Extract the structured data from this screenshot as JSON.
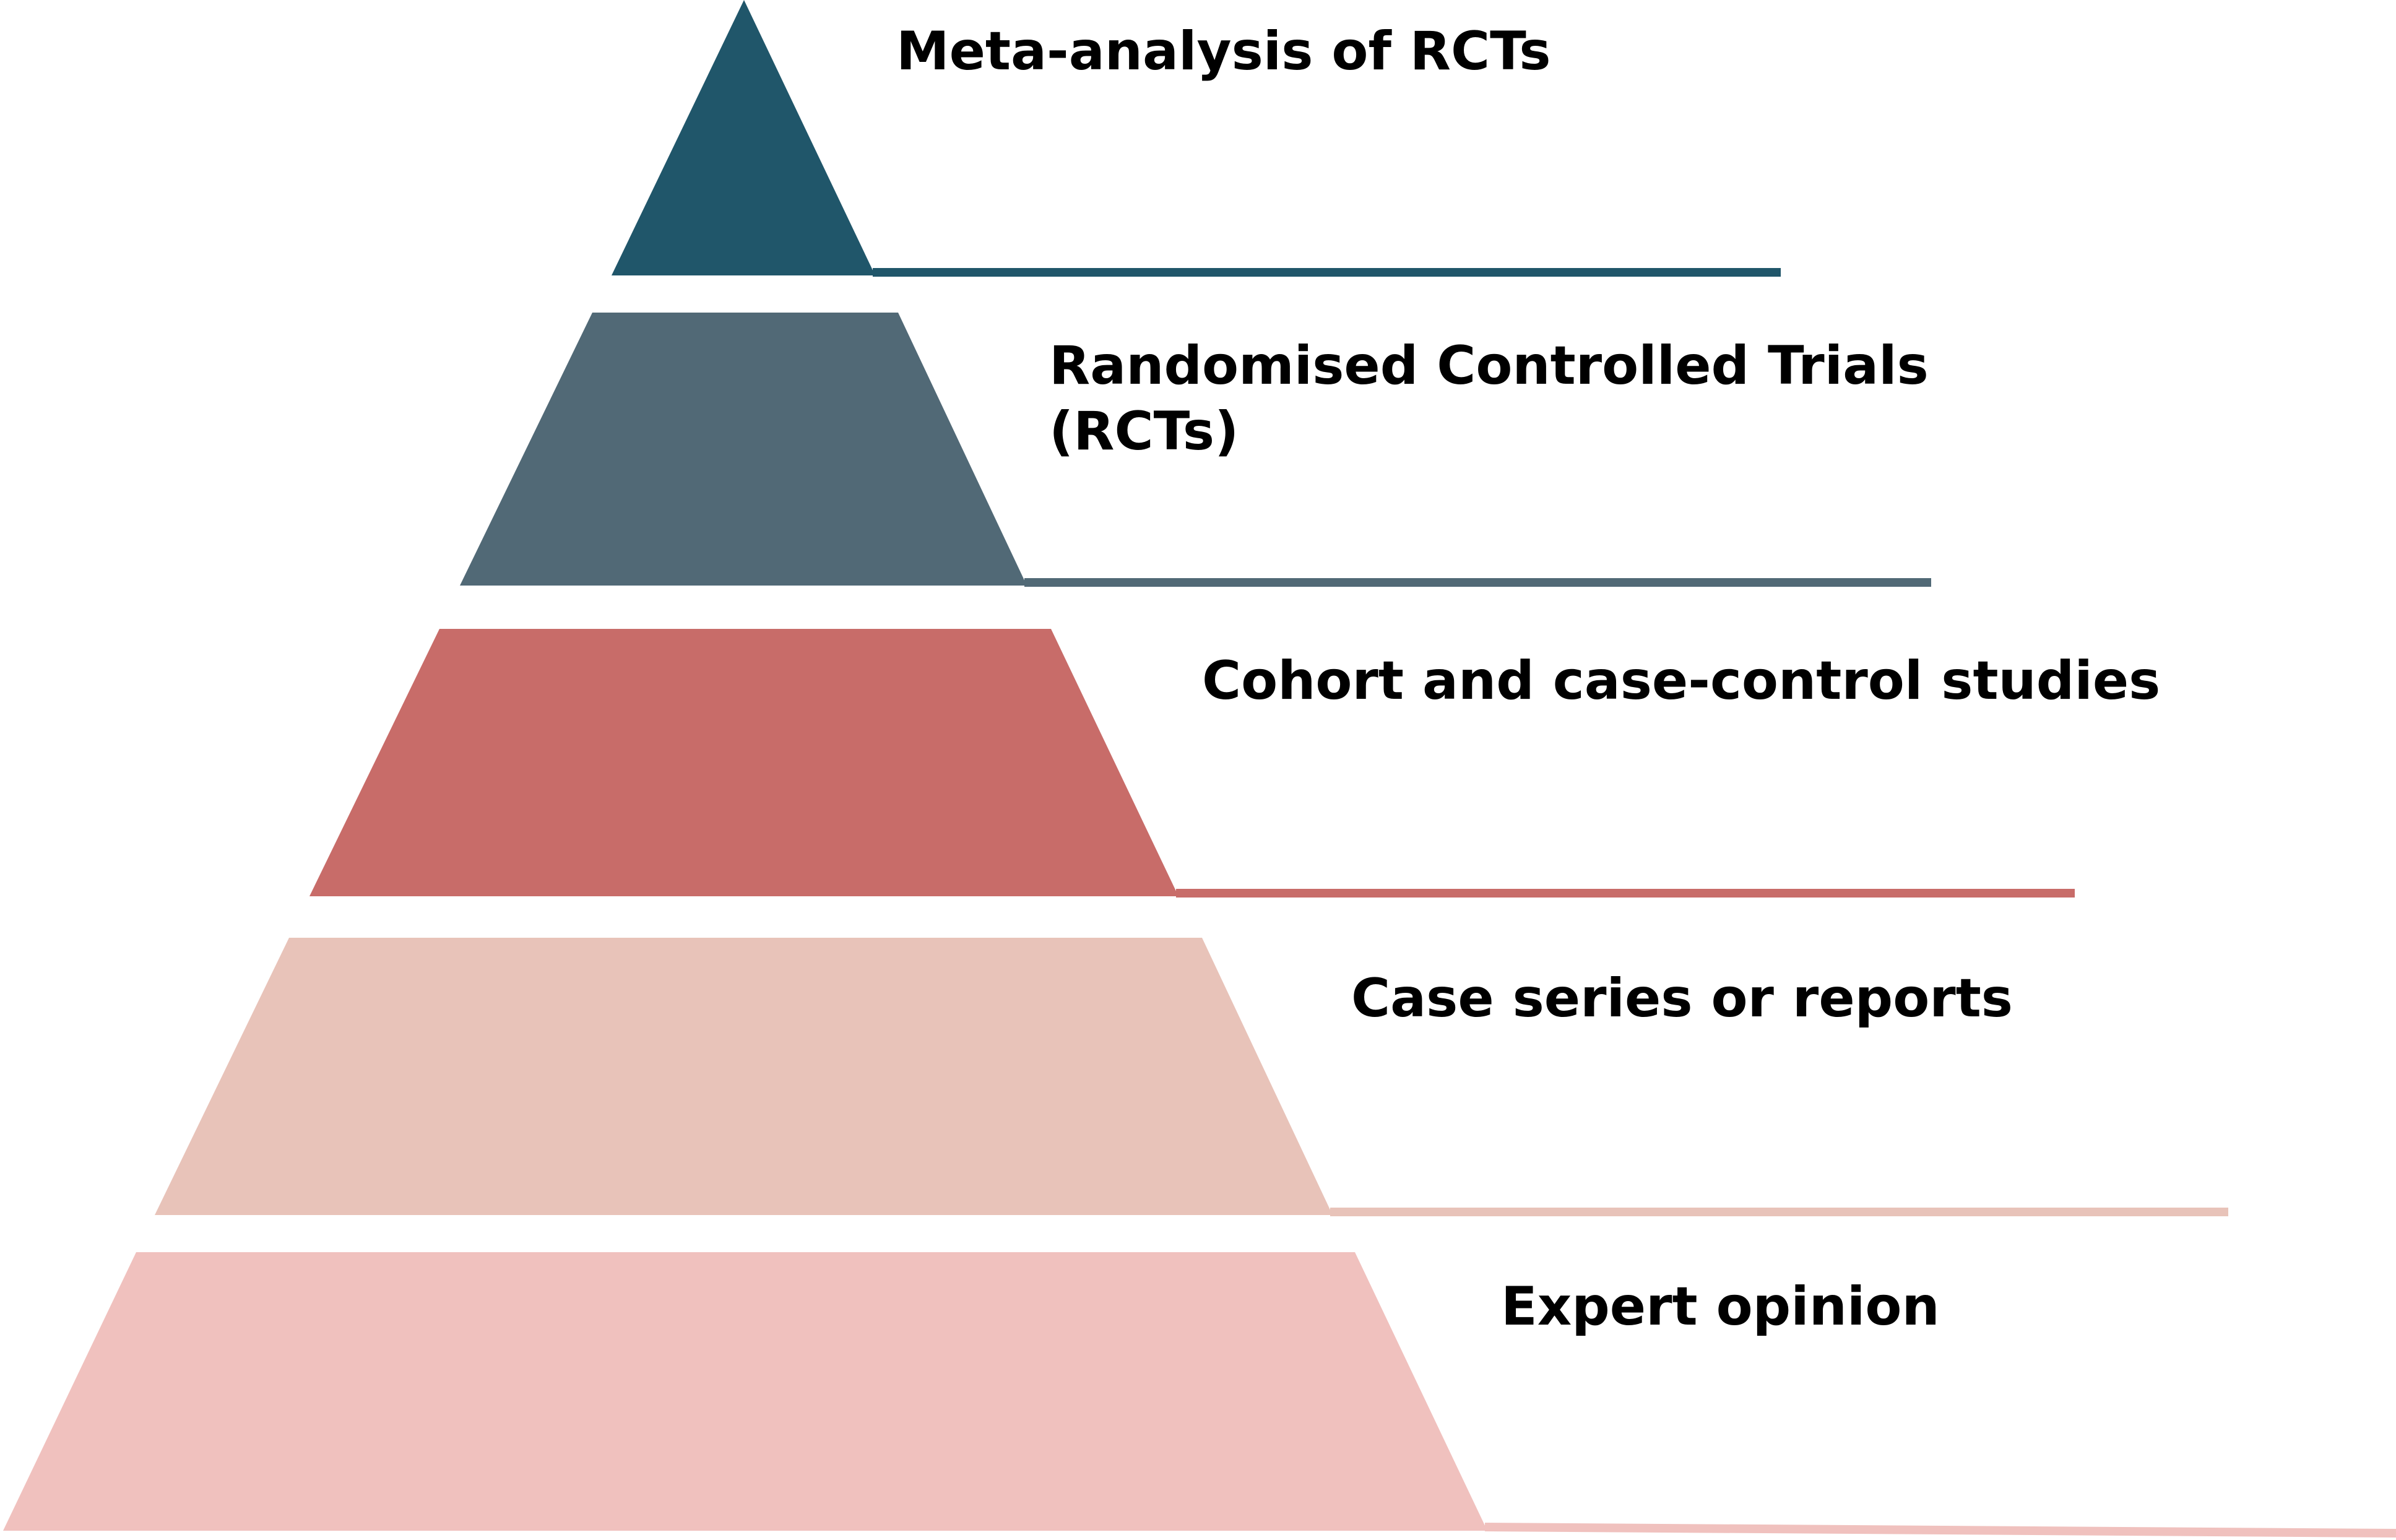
{
  "levels": [
    {
      "label_lines": [
        "Meta-analysis of RCTs"
      ],
      "color": "#20566A"
    },
    {
      "label_lines": [
        "Randomised Controlled Trials",
        "(RCTs)"
      ],
      "color": "#516976"
    },
    {
      "label_lines": [
        "Cohort and case-control studies"
      ],
      "color": "#C86C69"
    },
    {
      "label_lines": [
        "Case series or reports"
      ],
      "color": "#E8C3B9"
    },
    {
      "label_lines": [
        "Expert opinion"
      ],
      "color": "#F0C1BE"
    }
  ]
}
